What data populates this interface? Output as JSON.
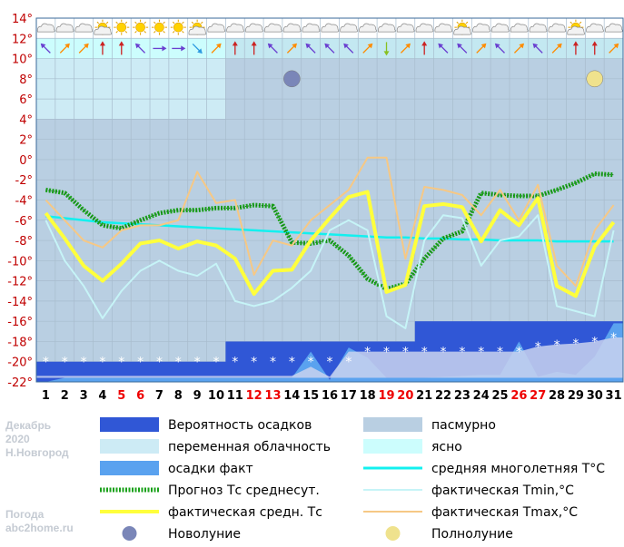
{
  "side_info": {
    "month": "Декабрь",
    "year": "2020",
    "city": "Н.Новгород",
    "site_title": "Погода",
    "site_url": "abc2home.ru"
  },
  "colors": {
    "overcast": "#b9cfe2",
    "variable": "#cdebf5",
    "clear": "#ccfdfd",
    "precip_prob": "#3057d6",
    "precip_fact": "#5aa2ef",
    "mean_climate": "#13f0ef",
    "forecast": "#1aa11a",
    "fact_min": "#c6f4f7",
    "fact_avg": "#ffff3c",
    "fact_max": "#f6c885",
    "weekend": "#ee0000"
  },
  "legend": [
    {
      "key": "precip_prob",
      "label": "Вероятность осадков"
    },
    {
      "key": "overcast",
      "label": "пасмурно"
    },
    {
      "key": "variable",
      "label": "переменная облачность"
    },
    {
      "key": "clear",
      "label": "ясно"
    },
    {
      "key": "precip_fact",
      "label": "осадки факт"
    },
    {
      "key": "mean_climate",
      "label": "средняя многолетняя T°C"
    },
    {
      "key": "forecast",
      "label": "Прогноз Тс среднесут."
    },
    {
      "key": "fact_min",
      "label": "фактическая Tmin,°C"
    },
    {
      "key": "fact_avg",
      "label": "фактическая средн. Тс"
    },
    {
      "key": "fact_max",
      "label": "фактическая Tmax,°C"
    },
    {
      "key": "new_moon",
      "label": "Новолуние"
    },
    {
      "key": "full_moon",
      "label": "Полнолуние"
    }
  ],
  "chart_data": {
    "type": "line",
    "x": [
      1,
      2,
      3,
      4,
      5,
      6,
      7,
      8,
      9,
      10,
      11,
      12,
      13,
      14,
      15,
      16,
      17,
      18,
      19,
      20,
      21,
      22,
      23,
      24,
      25,
      26,
      27,
      28,
      29,
      30,
      31
    ],
    "x_weekend": [
      5,
      6,
      12,
      13,
      19,
      20,
      26,
      27
    ],
    "ylim": [
      -22,
      14
    ],
    "yticks": [
      "14°",
      "12°",
      "10°",
      "8°",
      "6°",
      "4°",
      "2°",
      "0°",
      "-2°",
      "-4°",
      "-6°",
      "-8°",
      "-10°",
      "-12°",
      "-14°",
      "-16°",
      "-18°",
      "-20°",
      "-22°"
    ],
    "grid": true,
    "series": [
      {
        "name": "средняя многолетняя T°C",
        "key": "mean_climate",
        "values": [
          -5.6,
          -5.8,
          -6.0,
          -6.2,
          -6.3,
          -6.4,
          -6.5,
          -6.6,
          -6.7,
          -6.8,
          -6.9,
          -7.0,
          -7.1,
          -7.2,
          -7.3,
          -7.4,
          -7.5,
          -7.6,
          -7.7,
          -7.7,
          -7.8,
          -7.8,
          -7.9,
          -7.9,
          -8.0,
          -8.0,
          -8.0,
          -8.1,
          -8.1,
          -8.1,
          -8.1
        ]
      },
      {
        "name": "Прогноз Тс среднесут.",
        "key": "forecast",
        "values": [
          -3.0,
          -3.3,
          -5.0,
          -6.5,
          -6.8,
          -6.0,
          -5.3,
          -5.0,
          -5.0,
          -4.8,
          -4.8,
          -4.5,
          -4.6,
          -8.2,
          -8.3,
          -8.0,
          -9.5,
          -11.8,
          -12.8,
          -12.3,
          -9.8,
          -7.8,
          -7.1,
          -3.3,
          -3.5,
          -3.6,
          -3.6,
          -3.0,
          -2.3,
          -1.4,
          -1.5
        ]
      },
      {
        "name": "фактическая Tmin,°C",
        "key": "fact_min",
        "values": [
          -6.0,
          -10.0,
          -12.5,
          -15.7,
          -13.0,
          -11.0,
          -10.0,
          -11.0,
          -11.5,
          -10.3,
          -14.0,
          -14.5,
          -14.0,
          -12.7,
          -11.0,
          -7.0,
          -6.0,
          -7.0,
          -15.5,
          -16.7,
          -8.0,
          -5.5,
          -5.8,
          -10.5,
          -8.0,
          -7.6,
          -5.5,
          -14.5,
          -15.0,
          -15.5,
          -7.0
        ]
      },
      {
        "name": "фактическая Tmax,°C",
        "key": "fact_max",
        "values": [
          -4.0,
          -6.0,
          -8.0,
          -8.7,
          -7.0,
          -6.5,
          -6.5,
          -6.0,
          -1.2,
          -4.3,
          -4.0,
          -11.4,
          -8.0,
          -8.5,
          -6.0,
          -4.5,
          -3.0,
          0.2,
          0.2,
          -9.8,
          -2.7,
          -3.0,
          -3.5,
          -5.5,
          -3.0,
          -6.0,
          -2.5,
          -10.5,
          -12.5,
          -7.0,
          -4.5
        ]
      },
      {
        "name": "фактическая средн. Тс",
        "key": "fact_avg",
        "values": [
          -5.3,
          -7.8,
          -10.5,
          -12.0,
          -10.3,
          -8.3,
          -8.0,
          -8.8,
          -8.1,
          -8.5,
          -9.8,
          -13.3,
          -11.0,
          -10.9,
          -8.0,
          -5.8,
          -3.7,
          -3.2,
          -13.1,
          -12.4,
          -4.6,
          -4.4,
          -4.7,
          -8.1,
          -5.0,
          -6.5,
          -3.8,
          -12.5,
          -13.5,
          -8.6,
          -6.2
        ]
      }
    ],
    "precip_fact_peaks": [
      -22,
      -21.6,
      -21.6,
      -21.6,
      -21.6,
      -21.6,
      -21.6,
      -21.6,
      -21.6,
      -21.6,
      -21.6,
      -21.6,
      -21.6,
      -21.6,
      -19.0,
      -21.8,
      -18.6,
      -19.6,
      -21.6,
      -21.6,
      -21.6,
      -21.5,
      -21.4,
      -21.3,
      -21.3,
      -18.0,
      -21.5,
      -21.0,
      -21.3,
      -19.5,
      -16.2
    ],
    "precip_prob_bands": [
      {
        "from_day": 1,
        "to_day": 11,
        "top": -20
      },
      {
        "from_day": 11,
        "to_day": 21,
        "top": -18
      },
      {
        "from_day": 21,
        "to_day": 31,
        "top": -16
      }
    ],
    "snow_markers_at": -20,
    "cloud_bands": [
      {
        "from_day": 1,
        "to_day": 11,
        "from": 4,
        "to": 10,
        "kind": "variable"
      },
      {
        "from_day": 1,
        "to_day": 11,
        "from": 10,
        "to": 12,
        "kind": "clear"
      }
    ],
    "sky_icons": [
      "cloud",
      "cloud",
      "cloud",
      "sun-cloud",
      "sun",
      "sun",
      "sun",
      "sun",
      "sun-cloud",
      "cloud",
      "cloud",
      "cloud",
      "cloud",
      "cloud",
      "cloud",
      "cloud",
      "cloud",
      "cloud",
      "cloud",
      "cloud",
      "cloud",
      "cloud",
      "sun-cloud",
      "cloud",
      "cloud",
      "cloud",
      "cloud",
      "cloud",
      "sun-cloud",
      "cloud",
      "cloud"
    ],
    "wind_dirs": [
      315,
      45,
      45,
      0,
      0,
      315,
      90,
      90,
      135,
      45,
      0,
      0,
      315,
      45,
      315,
      315,
      315,
      45,
      180,
      45,
      0,
      315,
      315,
      45,
      315,
      45,
      315,
      45,
      0,
      0,
      45
    ],
    "new_moon_day": 14,
    "full_moon_day": 30
  }
}
